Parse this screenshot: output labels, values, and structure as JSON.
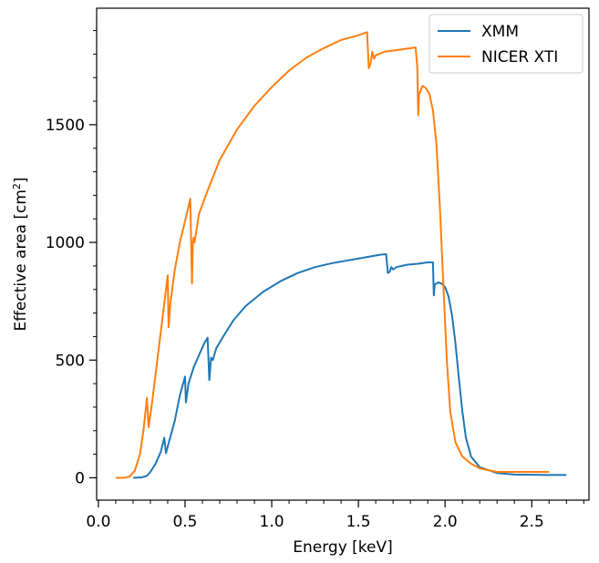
{
  "chart_data": {
    "type": "line",
    "xlabel": "Energy [keV]",
    "ylabel_main": "Effective area [cm",
    "ylabel_sup": "2",
    "ylabel_end": "]",
    "xlim": [
      -0.01,
      2.83
    ],
    "ylim": [
      -95,
      1995
    ],
    "x_ticks": [
      0.0,
      0.5,
      1.0,
      1.5,
      2.0,
      2.5
    ],
    "x_tick_labels": [
      "0.0",
      "0.5",
      "1.0",
      "1.5",
      "2.0",
      "2.5"
    ],
    "y_ticks": [
      0,
      500,
      1000,
      1500
    ],
    "y_tick_labels": [
      "0",
      "500",
      "1000",
      "1500"
    ],
    "x_minor_step": 0.1,
    "y_minor_step": 100,
    "legend_position": "top-right",
    "series": [
      {
        "name": "XMM",
        "color": "#1f77b4",
        "points": [
          [
            0.2,
            0
          ],
          [
            0.25,
            2
          ],
          [
            0.28,
            8
          ],
          [
            0.3,
            25
          ],
          [
            0.33,
            60
          ],
          [
            0.36,
            110
          ],
          [
            0.38,
            170
          ],
          [
            0.39,
            105
          ],
          [
            0.41,
            160
          ],
          [
            0.44,
            240
          ],
          [
            0.47,
            350
          ],
          [
            0.5,
            430
          ],
          [
            0.505,
            320
          ],
          [
            0.52,
            400
          ],
          [
            0.55,
            470
          ],
          [
            0.58,
            520
          ],
          [
            0.61,
            570
          ],
          [
            0.63,
            595
          ],
          [
            0.64,
            415
          ],
          [
            0.65,
            510
          ],
          [
            0.66,
            500
          ],
          [
            0.68,
            550
          ],
          [
            0.72,
            600
          ],
          [
            0.78,
            670
          ],
          [
            0.85,
            730
          ],
          [
            0.95,
            790
          ],
          [
            1.05,
            835
          ],
          [
            1.15,
            870
          ],
          [
            1.25,
            895
          ],
          [
            1.35,
            912
          ],
          [
            1.45,
            925
          ],
          [
            1.55,
            938
          ],
          [
            1.63,
            948
          ],
          [
            1.66,
            950
          ],
          [
            1.67,
            870
          ],
          [
            1.68,
            875
          ],
          [
            1.69,
            895
          ],
          [
            1.7,
            885
          ],
          [
            1.72,
            895
          ],
          [
            1.78,
            905
          ],
          [
            1.85,
            910
          ],
          [
            1.9,
            915
          ],
          [
            1.93,
            915
          ],
          [
            1.935,
            775
          ],
          [
            1.94,
            820
          ],
          [
            1.96,
            830
          ],
          [
            1.98,
            825
          ],
          [
            2.0,
            810
          ],
          [
            2.02,
            770
          ],
          [
            2.04,
            690
          ],
          [
            2.06,
            570
          ],
          [
            2.08,
            420
          ],
          [
            2.1,
            280
          ],
          [
            2.12,
            170
          ],
          [
            2.15,
            90
          ],
          [
            2.2,
            45
          ],
          [
            2.3,
            20
          ],
          [
            2.4,
            14
          ],
          [
            2.5,
            13
          ],
          [
            2.6,
            12
          ],
          [
            2.7,
            12
          ]
        ]
      },
      {
        "name": "NICER XTI",
        "color": "#ff7f0e",
        "points": [
          [
            0.1,
            0
          ],
          [
            0.15,
            0
          ],
          [
            0.18,
            5
          ],
          [
            0.21,
            30
          ],
          [
            0.24,
            100
          ],
          [
            0.26,
            200
          ],
          [
            0.28,
            340
          ],
          [
            0.29,
            215
          ],
          [
            0.31,
            320
          ],
          [
            0.34,
            500
          ],
          [
            0.37,
            680
          ],
          [
            0.4,
            860
          ],
          [
            0.405,
            640
          ],
          [
            0.415,
            740
          ],
          [
            0.44,
            880
          ],
          [
            0.47,
            1000
          ],
          [
            0.5,
            1090
          ],
          [
            0.53,
            1185
          ],
          [
            0.54,
            825
          ],
          [
            0.545,
            1000
          ],
          [
            0.55,
            1020
          ],
          [
            0.555,
            1000
          ],
          [
            0.58,
            1120
          ],
          [
            0.63,
            1220
          ],
          [
            0.7,
            1350
          ],
          [
            0.8,
            1480
          ],
          [
            0.9,
            1580
          ],
          [
            1.0,
            1660
          ],
          [
            1.1,
            1730
          ],
          [
            1.2,
            1785
          ],
          [
            1.3,
            1825
          ],
          [
            1.4,
            1860
          ],
          [
            1.5,
            1880
          ],
          [
            1.55,
            1893
          ],
          [
            1.56,
            1740
          ],
          [
            1.57,
            1760
          ],
          [
            1.58,
            1810
          ],
          [
            1.59,
            1780
          ],
          [
            1.6,
            1795
          ],
          [
            1.65,
            1810
          ],
          [
            1.7,
            1815
          ],
          [
            1.75,
            1820
          ],
          [
            1.8,
            1825
          ],
          [
            1.83,
            1828
          ],
          [
            1.84,
            1740
          ],
          [
            1.845,
            1540
          ],
          [
            1.85,
            1630
          ],
          [
            1.87,
            1665
          ],
          [
            1.89,
            1655
          ],
          [
            1.91,
            1630
          ],
          [
            1.93,
            1560
          ],
          [
            1.95,
            1420
          ],
          [
            1.97,
            1150
          ],
          [
            1.99,
            820
          ],
          [
            2.01,
            500
          ],
          [
            2.03,
            280
          ],
          [
            2.06,
            150
          ],
          [
            2.1,
            90
          ],
          [
            2.15,
            60
          ],
          [
            2.2,
            40
          ],
          [
            2.3,
            25
          ],
          [
            2.4,
            25
          ],
          [
            2.5,
            25
          ],
          [
            2.6,
            25
          ]
        ]
      }
    ]
  }
}
